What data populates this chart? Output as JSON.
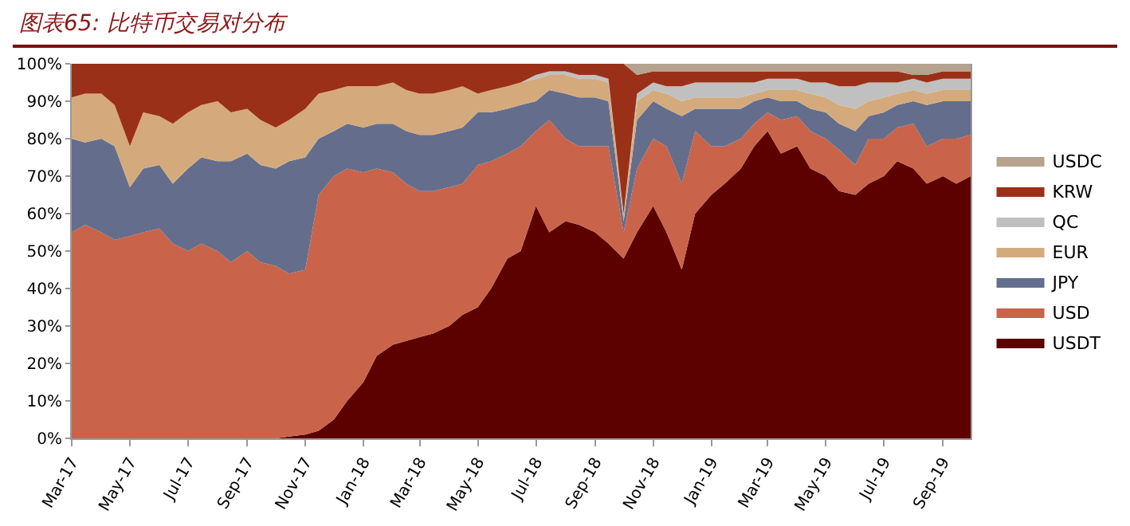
{
  "chart_data": {
    "type": "area",
    "stacked": true,
    "title": "图表65: 比特币交易对分布",
    "legend": "right",
    "grid": false,
    "x": [
      "2017-03-01",
      "2017-03-15",
      "2017-04-01",
      "2017-04-15",
      "2017-05-01",
      "2017-05-15",
      "2017-06-01",
      "2017-06-15",
      "2017-07-01",
      "2017-07-15",
      "2017-08-01",
      "2017-08-15",
      "2017-09-01",
      "2017-09-15",
      "2017-10-01",
      "2017-10-15",
      "2017-11-01",
      "2017-11-15",
      "2017-12-01",
      "2017-12-15",
      "2018-01-01",
      "2018-01-15",
      "2018-02-01",
      "2018-02-15",
      "2018-03-01",
      "2018-03-15",
      "2018-04-01",
      "2018-04-15",
      "2018-05-01",
      "2018-05-15",
      "2018-06-01",
      "2018-06-15",
      "2018-07-01",
      "2018-07-15",
      "2018-08-01",
      "2018-08-15",
      "2018-09-01",
      "2018-09-15",
      "2018-10-01",
      "2018-10-15",
      "2018-11-01",
      "2018-11-15",
      "2018-12-01",
      "2018-12-15",
      "2019-01-01",
      "2019-01-15",
      "2019-02-01",
      "2019-02-15",
      "2019-03-01",
      "2019-03-15",
      "2019-04-01",
      "2019-04-15",
      "2019-05-01",
      "2019-05-15",
      "2019-06-01",
      "2019-06-15",
      "2019-07-01",
      "2019-07-15",
      "2019-08-01",
      "2019-08-15",
      "2019-09-01",
      "2019-09-15",
      "2019-09-30"
    ],
    "series": [
      {
        "name": "USDT",
        "color": "#5c0000",
        "values": [
          0,
          0,
          0,
          0,
          0,
          0,
          0,
          0,
          0,
          0,
          0,
          0,
          0,
          0,
          0,
          0.5,
          1,
          2,
          5,
          10,
          15,
          22,
          25,
          26,
          27,
          28,
          30,
          33,
          35,
          40,
          48,
          50,
          62,
          55,
          58,
          57,
          55,
          52,
          48,
          55,
          62,
          55,
          45,
          60,
          65,
          68,
          72,
          78,
          82,
          76,
          78,
          72,
          70,
          66,
          65,
          68,
          70,
          74,
          72,
          68,
          70,
          68,
          70
        ]
      },
      {
        "name": "USD",
        "color": "#c9644a",
        "values": [
          55,
          57,
          55,
          53,
          54,
          55,
          56,
          52,
          50,
          52,
          50,
          47,
          50,
          47,
          46,
          43.5,
          44,
          63,
          65,
          62,
          56,
          50,
          46,
          42,
          39,
          38,
          37,
          35,
          38,
          34,
          28,
          28,
          20,
          30,
          22,
          21,
          23,
          26,
          7,
          17,
          18,
          23,
          23,
          22,
          13,
          10,
          8,
          6,
          5,
          9,
          8,
          10,
          10,
          11,
          8,
          12,
          10,
          9,
          12,
          10,
          10,
          12,
          11
        ]
      },
      {
        "name": "JPY",
        "color": "#646e8c",
        "values": [
          25,
          22,
          25,
          25,
          13,
          17,
          17,
          16,
          22,
          23,
          24,
          27,
          26,
          26,
          26,
          30,
          30,
          15,
          12,
          12,
          12,
          12,
          13,
          14,
          15,
          15,
          15,
          15,
          14,
          13,
          12,
          11,
          8,
          8,
          12,
          13,
          13,
          12,
          3,
          13,
          10,
          10,
          18,
          6,
          10,
          10,
          8,
          6,
          4,
          5,
          4,
          6,
          7,
          7,
          9,
          6,
          7,
          6,
          6,
          11,
          10,
          10,
          9
        ]
      },
      {
        "name": "EUR",
        "color": "#d4aa7d",
        "values": [
          11,
          13,
          12,
          11,
          11,
          15,
          13,
          16,
          15,
          14,
          16,
          13,
          12,
          12,
          11,
          11,
          13,
          12,
          11,
          10,
          11,
          10,
          11,
          11,
          11,
          11,
          11,
          11,
          5,
          6,
          6,
          6,
          6,
          4,
          5,
          5,
          5,
          5,
          2,
          5,
          3,
          4,
          4,
          3,
          3,
          3,
          3,
          2,
          2,
          3,
          3,
          4,
          4,
          5,
          6,
          4,
          4,
          3,
          3,
          3,
          3,
          3,
          3
        ]
      },
      {
        "name": "QC",
        "color": "#c0c0c0",
        "values": [
          0,
          0,
          0,
          0,
          0,
          0,
          0,
          0,
          0,
          0,
          0,
          0,
          0,
          0,
          0,
          0,
          0,
          0,
          0,
          0,
          0,
          0,
          0,
          0,
          0,
          0,
          0,
          0,
          0,
          0,
          0,
          0,
          1,
          1,
          1,
          1,
          1,
          1,
          0,
          2,
          2,
          2,
          4,
          4,
          4,
          4,
          4,
          3,
          3,
          3,
          3,
          3,
          4,
          5,
          6,
          5,
          4,
          3,
          3,
          3,
          3,
          3,
          3
        ]
      },
      {
        "name": "KRW",
        "color": "#9b3018",
        "values": [
          9,
          8,
          8,
          11,
          22,
          13,
          14,
          16,
          13,
          11,
          10,
          13,
          12,
          15,
          17,
          15,
          12,
          8,
          7,
          6,
          6,
          6,
          5,
          7,
          8,
          8,
          7,
          6,
          8,
          7,
          6,
          5,
          3,
          2,
          2,
          3,
          3,
          4,
          40,
          5,
          3,
          4,
          4,
          3,
          3,
          3,
          3,
          3,
          2,
          2,
          2,
          3,
          3,
          4,
          4,
          3,
          3,
          3,
          1,
          2,
          2,
          2,
          2
        ]
      },
      {
        "name": "USDC",
        "color": "#b5a390",
        "values": [
          0,
          0,
          0,
          0,
          0,
          0,
          0,
          0,
          0,
          0,
          0,
          0,
          0,
          0,
          0,
          0,
          0,
          0,
          0,
          0,
          0,
          0,
          0,
          0,
          0,
          0,
          0,
          0,
          0,
          0,
          0,
          0,
          0,
          0,
          0,
          0,
          0,
          0,
          0,
          3,
          2,
          2,
          2,
          2,
          2,
          2,
          2,
          2,
          2,
          2,
          2,
          2,
          2,
          2,
          2,
          2,
          2,
          2,
          3,
          3,
          2,
          2,
          2
        ]
      }
    ],
    "xlim": [
      "2017-03-01",
      "2019-09-30"
    ],
    "xticks": [
      {
        "value": "2017-03",
        "label": "Mar-17"
      },
      {
        "value": "2017-05",
        "label": "May-17"
      },
      {
        "value": "2017-07",
        "label": "Jul-17"
      },
      {
        "value": "2017-09",
        "label": "Sep-17"
      },
      {
        "value": "2017-11",
        "label": "Nov-17"
      },
      {
        "value": "2018-01",
        "label": "Jan-18"
      },
      {
        "value": "2018-03",
        "label": "Mar-18"
      },
      {
        "value": "2018-05",
        "label": "May-18"
      },
      {
        "value": "2018-07",
        "label": "Jul-18"
      },
      {
        "value": "2018-09",
        "label": "Sep-18"
      },
      {
        "value": "2018-11",
        "label": "Nov-18"
      },
      {
        "value": "2019-01",
        "label": "Jan-19"
      },
      {
        "value": "2019-03",
        "label": "Mar-19"
      },
      {
        "value": "2019-05",
        "label": "May-19"
      },
      {
        "value": "2019-07",
        "label": "Jul-19"
      },
      {
        "value": "2019-09",
        "label": "Sep-19"
      }
    ],
    "ylim": [
      0,
      100
    ],
    "yticks": [
      {
        "value": 0,
        "label": "0%"
      },
      {
        "value": 10,
        "label": "10%"
      },
      {
        "value": 20,
        "label": "20%"
      },
      {
        "value": 30,
        "label": "30%"
      },
      {
        "value": 40,
        "label": "40%"
      },
      {
        "value": 50,
        "label": "50%"
      },
      {
        "value": 60,
        "label": "60%"
      },
      {
        "value": 70,
        "label": "70%"
      },
      {
        "value": 80,
        "label": "80%"
      },
      {
        "value": 90,
        "label": "90%"
      },
      {
        "value": 100,
        "label": "100%"
      }
    ]
  }
}
